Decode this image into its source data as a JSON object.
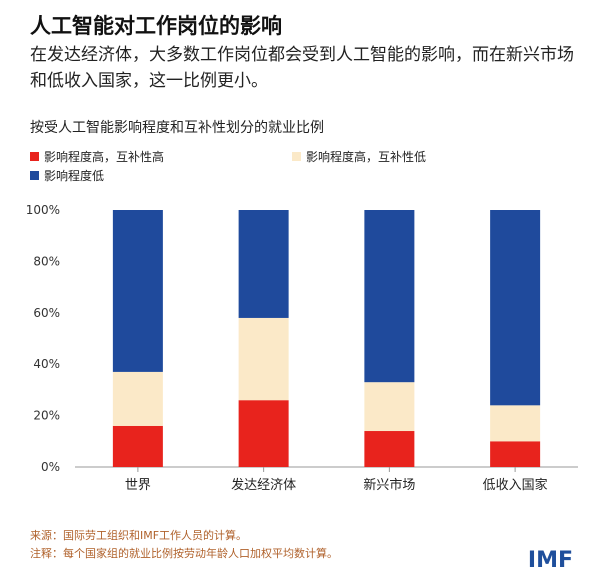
{
  "header": {
    "title": "人工智能对工作岗位的影响",
    "subtitle": "在发达经济体，大多数工作岗位都会受到人工智能的影响，而在新兴市场和低收入国家，这一比例更小。"
  },
  "chart_heading": "按受人工智能影响程度和互补性划分的就业比例",
  "legend": [
    {
      "label": "影响程度高，互补性高",
      "color": "#e8231d"
    },
    {
      "label": "影响程度高，互补性低",
      "color": "#fbe9c8"
    },
    {
      "label": "影响程度低",
      "color": "#1f4a9c"
    }
  ],
  "chart_data": {
    "type": "bar",
    "stacked": true,
    "categories": [
      "世界",
      "发达经济体",
      "新兴市场",
      "低收入国家"
    ],
    "series": [
      {
        "name": "影响程度高，互补性高",
        "values": [
          16,
          26,
          14,
          10
        ],
        "color": "#e8231d"
      },
      {
        "name": "影响程度高，互补性低",
        "values": [
          21,
          32,
          19,
          14
        ],
        "color": "#fbe9c8"
      },
      {
        "name": "影响程度低",
        "values": [
          63,
          42,
          67,
          76
        ],
        "color": "#1f4a9c"
      }
    ],
    "ylim": [
      0,
      100
    ],
    "yticks": [
      "0%",
      "20%",
      "40%",
      "60%",
      "80%",
      "100%"
    ],
    "grid": false
  },
  "footer": {
    "source": "来源：国际劳工组织和IMF工作人员的计算。",
    "note": "注释：每个国家组的就业比例按劳动年龄人口加权平均数计算。"
  },
  "logo": "IMF"
}
